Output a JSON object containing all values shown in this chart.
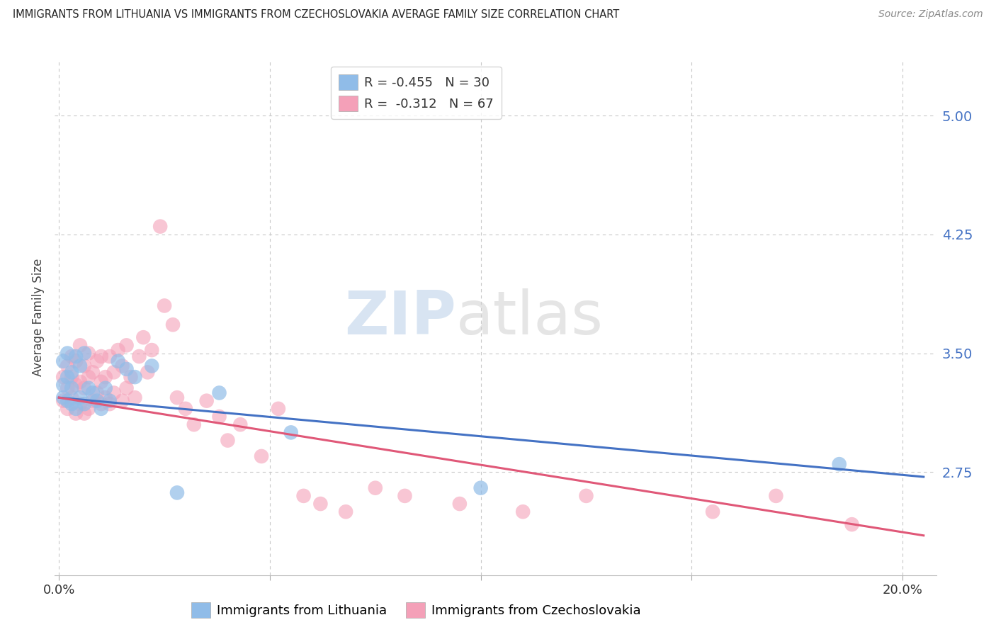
{
  "title": "IMMIGRANTS FROM LITHUANIA VS IMMIGRANTS FROM CZECHOSLOVAKIA AVERAGE FAMILY SIZE CORRELATION CHART",
  "source": "Source: ZipAtlas.com",
  "ylabel": "Average Family Size",
  "ylim": [
    2.1,
    5.35
  ],
  "xlim": [
    -0.001,
    0.208
  ],
  "yticks": [
    2.75,
    3.5,
    4.25,
    5.0
  ],
  "ytick_color": "#4472c4",
  "grid_color": "#c8c8c8",
  "background_color": "#ffffff",
  "legend_r1_label": "R = -0.455   N = 30",
  "legend_r2_label": "R =  -0.312   N = 67",
  "color_lithuania": "#90bce8",
  "color_czechoslovakia": "#f4a0b8",
  "line_color_lithuania": "#4472c4",
  "line_color_czechoslovakia": "#e05878",
  "lithuania_x": [
    0.001,
    0.001,
    0.001,
    0.002,
    0.002,
    0.002,
    0.003,
    0.003,
    0.003,
    0.004,
    0.004,
    0.005,
    0.005,
    0.006,
    0.006,
    0.007,
    0.008,
    0.009,
    0.01,
    0.011,
    0.012,
    0.014,
    0.016,
    0.018,
    0.022,
    0.028,
    0.038,
    0.055,
    0.1,
    0.185
  ],
  "lithuania_y": [
    3.22,
    3.3,
    3.45,
    3.2,
    3.35,
    3.5,
    3.18,
    3.28,
    3.38,
    3.15,
    3.48,
    3.22,
    3.42,
    3.18,
    3.5,
    3.28,
    3.25,
    3.2,
    3.15,
    3.28,
    3.2,
    3.45,
    3.4,
    3.35,
    3.42,
    2.62,
    3.25,
    3.0,
    2.65,
    2.8
  ],
  "czechoslovakia_x": [
    0.001,
    0.001,
    0.002,
    0.002,
    0.002,
    0.003,
    0.003,
    0.003,
    0.004,
    0.004,
    0.004,
    0.005,
    0.005,
    0.005,
    0.006,
    0.006,
    0.006,
    0.007,
    0.007,
    0.007,
    0.008,
    0.008,
    0.009,
    0.009,
    0.01,
    0.01,
    0.01,
    0.011,
    0.011,
    0.012,
    0.012,
    0.013,
    0.013,
    0.014,
    0.015,
    0.015,
    0.016,
    0.016,
    0.017,
    0.018,
    0.019,
    0.02,
    0.021,
    0.022,
    0.024,
    0.025,
    0.027,
    0.028,
    0.03,
    0.032,
    0.035,
    0.038,
    0.04,
    0.043,
    0.048,
    0.052,
    0.058,
    0.062,
    0.068,
    0.075,
    0.082,
    0.095,
    0.11,
    0.125,
    0.155,
    0.17,
    0.188
  ],
  "czechoslovakia_y": [
    3.2,
    3.35,
    3.15,
    3.28,
    3.42,
    3.22,
    3.35,
    3.48,
    3.12,
    3.3,
    3.45,
    3.18,
    3.32,
    3.55,
    3.12,
    3.28,
    3.42,
    3.15,
    3.35,
    3.5,
    3.2,
    3.38,
    3.25,
    3.45,
    3.18,
    3.32,
    3.48,
    3.22,
    3.35,
    3.18,
    3.48,
    3.25,
    3.38,
    3.52,
    3.2,
    3.42,
    3.28,
    3.55,
    3.35,
    3.22,
    3.48,
    3.6,
    3.38,
    3.52,
    4.3,
    3.8,
    3.68,
    3.22,
    3.15,
    3.05,
    3.2,
    3.1,
    2.95,
    3.05,
    2.85,
    3.15,
    2.6,
    2.55,
    2.5,
    2.65,
    2.6,
    2.55,
    2.5,
    2.6,
    2.5,
    2.6,
    2.42
  ],
  "line_lith_x0": 0.0,
  "line_lith_y0": 3.22,
  "line_lith_x1": 0.205,
  "line_lith_y1": 2.72,
  "line_czech_x0": 0.0,
  "line_czech_y0": 3.22,
  "line_czech_x1": 0.205,
  "line_czech_y1": 2.35
}
